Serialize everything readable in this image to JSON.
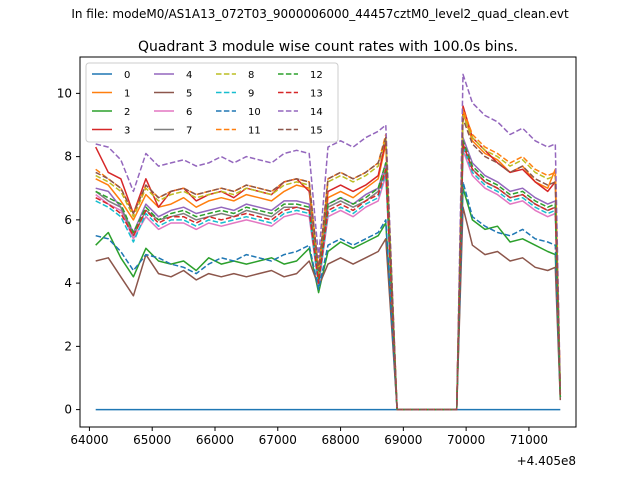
{
  "chart_data": {
    "type": "line",
    "suptitle": "In file: modeM0/AS1A13_072T03_9000006000_44457cztM0_level2_quad_clean.evt",
    "title": "Quadrant 3 module wise count rates with 100.0s bins.",
    "xlabel": "",
    "ylabel": "",
    "x_offset_label": "+4.405e8",
    "x_offset": 440500000,
    "xlim": [
      63850,
      71750
    ],
    "ylim": [
      -0.55,
      11.15
    ],
    "xticks": [
      64000,
      65000,
      66000,
      67000,
      68000,
      69000,
      70000,
      71000
    ],
    "yticks": [
      0,
      2,
      4,
      6,
      8,
      10
    ],
    "grid": false,
    "legend_position": "top-left",
    "legend_columns": 4,
    "x": [
      64100,
      64300,
      64500,
      64700,
      64900,
      65100,
      65300,
      65500,
      65700,
      65900,
      66100,
      66300,
      66500,
      66700,
      66900,
      67100,
      67300,
      67500,
      67650,
      67800,
      68000,
      68200,
      68400,
      68600,
      68720,
      68900,
      69400,
      69850,
      69950,
      70100,
      70300,
      70500,
      70700,
      70900,
      71100,
      71300,
      71420,
      71500
    ],
    "series": [
      {
        "name": "0",
        "color": "#1f77b4",
        "dash": "solid",
        "values": [
          0,
          0,
          0,
          0,
          0,
          0,
          0,
          0,
          0,
          0,
          0,
          0,
          0,
          0,
          0,
          0,
          0,
          0,
          0,
          0,
          0,
          0,
          0,
          0,
          0,
          0,
          0,
          0,
          0,
          0,
          0,
          0,
          0,
          0,
          0,
          0,
          0,
          0
        ]
      },
      {
        "name": "1",
        "color": "#ff7f0e",
        "dash": "solid",
        "values": [
          7.3,
          7.1,
          6.6,
          6.0,
          6.8,
          6.4,
          6.5,
          6.7,
          6.4,
          6.6,
          6.7,
          6.6,
          6.8,
          6.7,
          6.6,
          6.9,
          7.1,
          7.0,
          4.2,
          6.7,
          6.9,
          6.7,
          7.0,
          7.3,
          8.4,
          0,
          0,
          0,
          9.4,
          8.5,
          8.1,
          7.9,
          7.5,
          7.7,
          7.2,
          7.0,
          7.6,
          0.5
        ]
      },
      {
        "name": "2",
        "color": "#2ca02c",
        "dash": "solid",
        "values": [
          5.2,
          5.6,
          4.8,
          4.2,
          5.1,
          4.7,
          4.6,
          4.7,
          4.4,
          4.8,
          4.6,
          4.7,
          4.6,
          4.7,
          4.8,
          4.6,
          4.7,
          5.1,
          3.7,
          5.0,
          5.3,
          5.1,
          5.3,
          5.5,
          5.9,
          0,
          0,
          0,
          7.0,
          6.0,
          5.7,
          5.8,
          5.3,
          5.4,
          5.2,
          5.0,
          4.9,
          0.4
        ]
      },
      {
        "name": "3",
        "color": "#d62728",
        "dash": "solid",
        "values": [
          8.3,
          7.5,
          7.3,
          6.2,
          7.3,
          6.4,
          6.9,
          7.0,
          6.6,
          6.8,
          6.9,
          6.7,
          7.0,
          6.9,
          6.8,
          7.2,
          7.3,
          6.9,
          4.4,
          6.9,
          7.1,
          6.9,
          7.1,
          7.4,
          8.5,
          0,
          0,
          0,
          9.6,
          8.6,
          8.2,
          7.8,
          7.5,
          7.6,
          7.2,
          6.9,
          7.2,
          0.5
        ]
      },
      {
        "name": "4",
        "color": "#9467bd",
        "dash": "solid",
        "values": [
          7.0,
          6.9,
          6.4,
          5.6,
          6.5,
          6.1,
          6.3,
          6.4,
          6.2,
          6.3,
          6.4,
          6.3,
          6.5,
          6.4,
          6.3,
          6.6,
          6.6,
          6.5,
          4.0,
          6.5,
          6.7,
          6.5,
          6.8,
          7.0,
          7.8,
          0,
          0,
          0,
          8.6,
          7.8,
          7.4,
          7.2,
          6.9,
          7.0,
          6.7,
          6.5,
          6.6,
          0.4
        ]
      },
      {
        "name": "5",
        "color": "#8c564b",
        "dash": "solid",
        "values": [
          4.7,
          4.8,
          4.2,
          3.6,
          4.9,
          4.3,
          4.2,
          4.4,
          4.1,
          4.3,
          4.2,
          4.3,
          4.2,
          4.3,
          4.4,
          4.2,
          4.3,
          4.7,
          3.9,
          4.6,
          4.8,
          4.6,
          4.8,
          5.0,
          5.4,
          0,
          0,
          0,
          6.4,
          5.2,
          4.9,
          5.0,
          4.7,
          4.8,
          4.5,
          4.4,
          4.5,
          0.3
        ]
      },
      {
        "name": "6",
        "color": "#e377c2",
        "dash": "solid",
        "values": [
          6.8,
          6.5,
          6.3,
          5.4,
          6.1,
          5.7,
          5.9,
          5.9,
          5.7,
          5.9,
          5.8,
          5.9,
          6.0,
          5.9,
          5.8,
          6.1,
          6.2,
          6.1,
          3.9,
          6.1,
          6.3,
          6.1,
          6.4,
          6.6,
          7.4,
          0,
          0,
          0,
          8.2,
          7.4,
          7.0,
          6.8,
          6.5,
          6.6,
          6.3,
          6.1,
          6.2,
          0.4
        ]
      },
      {
        "name": "7",
        "color": "#7f7f7f",
        "dash": "solid",
        "values": [
          6.9,
          6.6,
          6.4,
          5.5,
          6.3,
          6.0,
          6.1,
          6.2,
          6.0,
          6.1,
          6.2,
          6.1,
          6.3,
          6.2,
          6.1,
          6.4,
          6.4,
          6.3,
          4.0,
          6.4,
          6.6,
          6.4,
          6.6,
          6.9,
          7.6,
          0,
          0,
          0,
          8.4,
          7.6,
          7.2,
          7.0,
          6.7,
          6.8,
          6.5,
          6.3,
          6.4,
          0.4
        ]
      },
      {
        "name": "8",
        "color": "#bcbd22",
        "dash": "dashed",
        "values": [
          7.4,
          7.2,
          6.9,
          6.1,
          7.0,
          6.6,
          6.8,
          6.9,
          6.7,
          6.8,
          6.9,
          6.8,
          7.0,
          6.9,
          6.8,
          7.1,
          7.2,
          7.1,
          4.3,
          7.2,
          7.4,
          7.2,
          7.4,
          7.7,
          8.6,
          0,
          0,
          0,
          9.3,
          8.6,
          8.2,
          8.0,
          7.7,
          7.9,
          7.5,
          7.3,
          7.4,
          0.5
        ]
      },
      {
        "name": "9",
        "color": "#17becf",
        "dash": "dashed",
        "values": [
          6.6,
          6.4,
          6.1,
          5.3,
          6.2,
          5.8,
          6.0,
          6.0,
          5.8,
          6.0,
          5.9,
          6.0,
          6.1,
          6.0,
          5.9,
          6.2,
          6.3,
          6.2,
          3.9,
          6.2,
          6.4,
          6.2,
          6.5,
          6.7,
          7.5,
          0,
          0,
          0,
          8.3,
          7.5,
          7.1,
          6.9,
          6.6,
          6.7,
          6.4,
          6.2,
          6.3,
          0.4
        ]
      },
      {
        "name": "10",
        "color": "#1f77b4",
        "dash": "dashed",
        "values": [
          5.5,
          5.4,
          5.0,
          4.4,
          4.9,
          4.8,
          4.6,
          4.5,
          4.3,
          4.6,
          4.8,
          4.7,
          4.9,
          4.8,
          4.7,
          4.9,
          5.0,
          5.2,
          3.8,
          5.2,
          5.4,
          5.2,
          5.4,
          5.6,
          6.0,
          0,
          0,
          0,
          7.2,
          6.1,
          5.8,
          5.6,
          5.5,
          5.7,
          5.4,
          5.3,
          5.2,
          0.4
        ]
      },
      {
        "name": "11",
        "color": "#ff7f0e",
        "dash": "dashed",
        "values": [
          7.6,
          7.3,
          7.0,
          6.2,
          7.1,
          6.7,
          6.9,
          7.0,
          6.8,
          6.9,
          7.0,
          6.9,
          7.1,
          7.0,
          6.9,
          7.2,
          7.3,
          7.2,
          4.4,
          7.3,
          7.5,
          7.3,
          7.5,
          7.8,
          8.7,
          0,
          0,
          0,
          9.5,
          8.7,
          8.3,
          8.1,
          7.8,
          8.0,
          7.6,
          7.4,
          7.5,
          0.5
        ]
      },
      {
        "name": "12",
        "color": "#2ca02c",
        "dash": "dashed",
        "values": [
          6.9,
          6.7,
          6.5,
          5.6,
          6.4,
          6.0,
          6.2,
          6.3,
          6.1,
          6.2,
          6.3,
          6.2,
          6.4,
          6.3,
          6.2,
          6.5,
          6.5,
          6.4,
          4.1,
          6.5,
          6.7,
          6.5,
          6.7,
          7.0,
          7.8,
          0,
          0,
          0,
          8.5,
          7.7,
          7.3,
          7.1,
          6.8,
          6.9,
          6.6,
          6.4,
          6.5,
          0.4
        ]
      },
      {
        "name": "13",
        "color": "#d62728",
        "dash": "dashed",
        "values": [
          6.7,
          6.5,
          6.2,
          5.5,
          6.3,
          5.9,
          6.1,
          6.1,
          5.9,
          6.1,
          6.0,
          6.1,
          6.2,
          6.1,
          6.0,
          6.3,
          6.4,
          6.3,
          4.0,
          6.3,
          6.5,
          6.3,
          6.6,
          6.8,
          7.6,
          0,
          0,
          0,
          8.4,
          7.6,
          7.2,
          7.0,
          6.7,
          6.8,
          6.5,
          6.3,
          6.4,
          0.4
        ]
      },
      {
        "name": "14",
        "color": "#9467bd",
        "dash": "dashed",
        "values": [
          8.4,
          8.3,
          7.9,
          6.9,
          8.1,
          7.7,
          7.8,
          7.9,
          7.7,
          7.8,
          8.0,
          7.8,
          8.0,
          7.9,
          7.8,
          8.1,
          8.2,
          8.1,
          4.8,
          8.3,
          8.5,
          8.3,
          8.6,
          8.8,
          9.0,
          0,
          0,
          0,
          10.6,
          9.7,
          9.3,
          9.1,
          8.7,
          8.9,
          8.5,
          8.3,
          8.4,
          0.6
        ]
      },
      {
        "name": "15",
        "color": "#8c564b",
        "dash": "dashed",
        "values": [
          7.5,
          7.3,
          7.0,
          6.2,
          7.1,
          6.7,
          6.9,
          7.0,
          6.8,
          6.9,
          7.0,
          6.9,
          7.1,
          7.0,
          6.9,
          7.2,
          7.3,
          7.2,
          4.4,
          7.3,
          7.5,
          7.3,
          7.5,
          7.8,
          8.6,
          0,
          0,
          0,
          9.2,
          8.4,
          8.0,
          7.8,
          7.5,
          7.7,
          7.3,
          7.1,
          7.2,
          0.5
        ]
      }
    ]
  }
}
